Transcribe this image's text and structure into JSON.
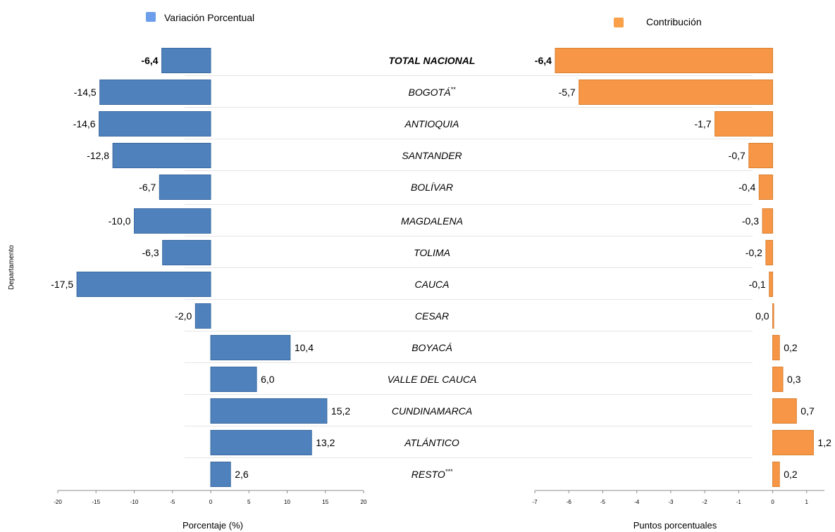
{
  "y_axis_label": "Departamento",
  "chart_data": [
    {
      "type": "bar",
      "orientation": "horizontal",
      "legend": "Variación Porcentual",
      "legend_placement": "top",
      "color": "#4f81bd",
      "legend_color": "#6d9eeb",
      "xlabel": "Porcentaje (%)",
      "xlim": [
        -20,
        20
      ],
      "xticks": [
        -20,
        -15,
        -10,
        -5,
        0,
        5,
        10,
        15,
        20
      ],
      "values": [
        -6.4,
        -14.5,
        -14.6,
        -12.8,
        -6.7,
        -10.0,
        -6.3,
        -17.5,
        -2.0,
        10.4,
        6.0,
        15.2,
        13.2,
        2.6
      ],
      "value_labels": [
        "-6,4",
        "-14,5",
        "-14,6",
        "-12,8",
        "-6,7",
        "-10,0",
        "-6,3",
        "-17,5",
        "-2,0",
        "10,4",
        "6,0",
        "15,2",
        "13,2",
        "2,6"
      ]
    },
    {
      "type": "bar",
      "orientation": "horizontal",
      "legend": "Contribución",
      "legend_placement": "top",
      "color": "#f79646",
      "legend_color": "#f9a048",
      "xlabel": "Puntos porcentuales",
      "xlim": [
        -7,
        2
      ],
      "xticks": [
        -7,
        -6,
        -5,
        -4,
        -3,
        -2,
        -1,
        0,
        1
      ],
      "values": [
        -6.4,
        -5.7,
        -1.7,
        -0.7,
        -0.4,
        -0.3,
        -0.2,
        -0.1,
        0.0,
        0.2,
        0.3,
        0.7,
        1.2,
        0.2
      ],
      "value_labels": [
        "-6,4",
        "-5,7",
        "-1,7",
        "-0,7",
        "-0,4",
        "-0,3",
        "-0,2",
        "-0,1",
        "0,0",
        "0,2",
        "0,3",
        "0,7",
        "1,2",
        "0,2"
      ]
    }
  ],
  "categories": [
    {
      "name": "TOTAL NACIONAL",
      "sup": "",
      "bold": true
    },
    {
      "name": "BOGOTÁ",
      "sup": "**",
      "bold": false
    },
    {
      "name": "ANTIOQUIA",
      "sup": "",
      "bold": false
    },
    {
      "name": "SANTANDER",
      "sup": "",
      "bold": false
    },
    {
      "name": "BOLÍVAR",
      "sup": "",
      "bold": false
    },
    {
      "name": "MAGDALENA",
      "sup": "",
      "bold": false
    },
    {
      "name": "TOLIMA",
      "sup": "",
      "bold": false
    },
    {
      "name": "CAUCA",
      "sup": "",
      "bold": false
    },
    {
      "name": "CESAR",
      "sup": "",
      "bold": false
    },
    {
      "name": "BOYACÁ",
      "sup": "",
      "bold": false
    },
    {
      "name": "VALLE DEL CAUCA",
      "sup": "",
      "bold": false
    },
    {
      "name": "CUNDINAMARCA",
      "sup": "",
      "bold": false
    },
    {
      "name": "ATLÁNTICO",
      "sup": "",
      "bold": false
    },
    {
      "name": "RESTO",
      "sup": "***",
      "bold": false
    }
  ]
}
